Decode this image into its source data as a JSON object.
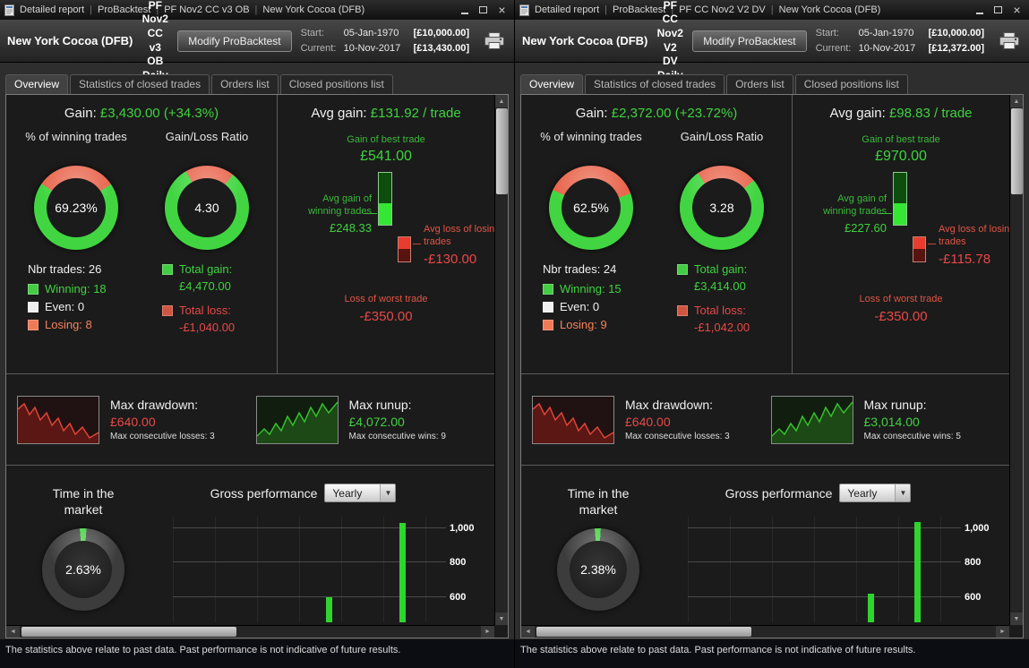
{
  "status_note": "The statistics above relate to past data. Past performance is not indicative of future results.",
  "windows": [
    {
      "titlebar": {
        "items": [
          "Detailed report",
          "ProBacktest",
          "PF Nov2 CC v3 OB",
          "New York Cocoa (DFB)"
        ]
      },
      "header": {
        "instrument": "New York Cocoa (DFB)",
        "strategy": "PF Nov2 CC v3 OB",
        "timeframe": "Daily",
        "modify_button": "Modify ProBacktest",
        "start_label": "Start:",
        "start_date": "05-Jan-1970",
        "start_value": "[£10,000.00]",
        "current_label": "Current:",
        "current_date": "10-Nov-2017",
        "current_value": "[£13,430.00]"
      },
      "tabs": [
        "Overview",
        "Statistics of closed trades",
        "Orders list",
        "Closed positions list"
      ],
      "overview": {
        "gain_label": "Gain:",
        "gain_value": "£3,430.00 (+34.3%)",
        "avg_gain_label": "Avg gain:",
        "avg_gain_value": "£131.92 / trade",
        "winning_donut": {
          "label": "% of winning trades",
          "value": "69.23%",
          "seg1_pct": 30.77,
          "seg1_color": "#e8654c",
          "seg2_color": "#41d641",
          "start_deg": -55
        },
        "ratio_donut": {
          "label": "Gain/Loss Ratio",
          "value": "4.30",
          "seg1_pct": 18.9,
          "seg1_color": "#e8654c",
          "seg2_color": "#41d641",
          "start_deg": -30
        },
        "nbr_trades": "Nbr trades: 26",
        "legend": [
          {
            "label": "Winning: 18",
            "color": "#44cc44"
          },
          {
            "label": "Even: 0",
            "color": "#f0f0f0"
          },
          {
            "label": "Losing: 8",
            "color": "#f07a55"
          }
        ],
        "total_gain_label": "Total gain:",
        "total_gain_value": "£4,470.00",
        "total_gain_color": "#44cc44",
        "total_loss_label": "Total loss:",
        "total_loss_value": "-£1,040.00",
        "total_loss_color": "#d05540",
        "best_trade_label": "Gain of best trade",
        "best_trade_value": "£541.00",
        "avg_win_label": "Avg gain of winning trades",
        "avg_win_value": "£248.33",
        "avg_loss_label": "Avg loss of losing trades",
        "avg_loss_value": "-£130.00",
        "worst_trade_label": "Loss of worst trade",
        "worst_trade_value": "-£350.00",
        "drawdown_label": "Max drawdown:",
        "drawdown_value": "£640.00",
        "consec_losses": "Max consecutive losses: 3",
        "runup_label": "Max runup:",
        "runup_value": "£4,072.00",
        "consec_wins": "Max consecutive wins: 9",
        "time_label": "Time in the market",
        "time_donut": {
          "value": "2.63%",
          "seg1_pct": 2.63,
          "seg1_color": "#3fd23f",
          "seg2_color": "#3c3c3c",
          "start_deg": -5
        },
        "gross_perf_label": "Gross performance",
        "period_select": "Yearly"
      },
      "chart_data": {
        "type": "bar",
        "title": "Gross performance (Yearly)",
        "ylim_visible": [
          455,
          1065
        ],
        "gridlines": [
          600,
          800,
          1000
        ],
        "gridline_labels": [
          "600",
          "800",
          "1,000"
        ],
        "x_labels_visible": false,
        "bar_color": "#2fd42f",
        "bars": [
          {
            "x_pct": 56,
            "value": 600
          },
          {
            "x_pct": 83,
            "value": 1030
          }
        ]
      }
    },
    {
      "titlebar": {
        "items": [
          "Detailed report",
          "ProBacktest",
          "PF CC Nov2 V2 DV",
          "New York Cocoa (DFB)"
        ]
      },
      "header": {
        "instrument": "New York Cocoa (DFB)",
        "strategy": "PF CC Nov2 V2 DV",
        "timeframe": "Daily",
        "modify_button": "Modify ProBacktest",
        "start_label": "Start:",
        "start_date": "05-Jan-1970",
        "start_value": "[£10,000.00]",
        "current_label": "Current:",
        "current_date": "10-Nov-2017",
        "current_value": "[£12,372.00]"
      },
      "tabs": [
        "Overview",
        "Statistics of closed trades",
        "Orders list",
        "Closed positions list"
      ],
      "overview": {
        "gain_label": "Gain:",
        "gain_value": "£2,372.00 (+23.72%)",
        "avg_gain_label": "Avg gain:",
        "avg_gain_value": "£98.83 / trade",
        "winning_donut": {
          "label": "% of winning trades",
          "value": "62.5%",
          "seg1_pct": 37.5,
          "seg1_color": "#e8654c",
          "seg2_color": "#41d641",
          "start_deg": -65
        },
        "ratio_donut": {
          "label": "Gain/Loss Ratio",
          "value": "3.28",
          "seg1_pct": 23.4,
          "seg1_color": "#e8654c",
          "seg2_color": "#41d641",
          "start_deg": -35
        },
        "nbr_trades": "Nbr trades: 24",
        "legend": [
          {
            "label": "Winning: 15",
            "color": "#44cc44"
          },
          {
            "label": "Even: 0",
            "color": "#f0f0f0"
          },
          {
            "label": "Losing: 9",
            "color": "#f07a55"
          }
        ],
        "total_gain_label": "Total gain:",
        "total_gain_value": "£3,414.00",
        "total_gain_color": "#44cc44",
        "total_loss_label": "Total loss:",
        "total_loss_value": "-£1,042.00",
        "total_loss_color": "#d05540",
        "best_trade_label": "Gain of best trade",
        "best_trade_value": "£970.00",
        "avg_win_label": "Avg gain of winning trades",
        "avg_win_value": "£227.60",
        "avg_loss_label": "Avg loss of losing trades",
        "avg_loss_value": "-£115.78",
        "worst_trade_label": "Loss of worst trade",
        "worst_trade_value": "-£350.00",
        "drawdown_label": "Max drawdown:",
        "drawdown_value": "£640.00",
        "consec_losses": "Max consecutive losses: 3",
        "runup_label": "Max runup:",
        "runup_value": "£3,014.00",
        "consec_wins": "Max consecutive wins: 5",
        "time_label": "Time in the market",
        "time_donut": {
          "value": "2.38%",
          "seg1_pct": 2.38,
          "seg1_color": "#3fd23f",
          "seg2_color": "#3c3c3c",
          "start_deg": -5
        },
        "gross_perf_label": "Gross performance",
        "period_select": "Yearly"
      },
      "chart_data": {
        "type": "bar",
        "title": "Gross performance (Yearly)",
        "ylim_visible": [
          455,
          1065
        ],
        "gridlines": [
          600,
          800,
          1000
        ],
        "gridline_labels": [
          "600",
          "800",
          "1,000"
        ],
        "x_labels_visible": false,
        "bar_color": "#2fd42f",
        "bars": [
          {
            "x_pct": 66,
            "value": 620
          },
          {
            "x_pct": 83,
            "value": 1035
          }
        ]
      }
    }
  ]
}
